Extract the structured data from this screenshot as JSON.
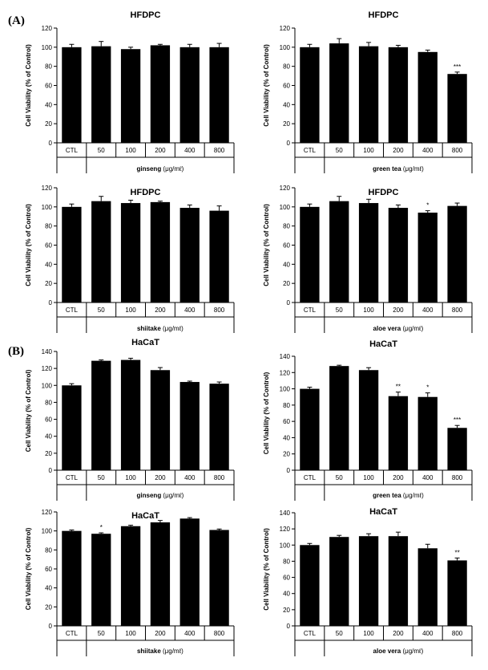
{
  "panels": [
    {
      "label": "(A)"
    },
    {
      "label": "(B)"
    }
  ],
  "chart_data": [
    {
      "type": "bar",
      "title": "HFDPC",
      "ylabel": "Cell Viability (% of Control)",
      "xlabel": "ginseng",
      "unit": "(μg/mℓ)",
      "ylim": [
        0,
        120
      ],
      "yticks": [
        0,
        20,
        40,
        60,
        80,
        100,
        120
      ],
      "categories": [
        "CTL",
        "50",
        "100",
        "200",
        "400",
        "800"
      ],
      "values": [
        100,
        101,
        98,
        102,
        100,
        100
      ],
      "errors": [
        3,
        5,
        2,
        1,
        3,
        4
      ],
      "significance": [
        "",
        "",
        "",
        "",
        "",
        ""
      ]
    },
    {
      "type": "bar",
      "title": "HFDPC",
      "ylabel": "Cell Viability (% of Control)",
      "xlabel": "green tea",
      "unit": "(μg/mℓ)",
      "ylim": [
        0,
        120
      ],
      "yticks": [
        0,
        20,
        40,
        60,
        80,
        100,
        120
      ],
      "categories": [
        "CTL",
        "50",
        "100",
        "200",
        "400",
        "800"
      ],
      "values": [
        100,
        104,
        101,
        100,
        95,
        72
      ],
      "errors": [
        3,
        5,
        4,
        2,
        2,
        2
      ],
      "significance": [
        "",
        "",
        "",
        "",
        "",
        "***"
      ]
    },
    {
      "type": "bar",
      "title": "HFDPC",
      "ylabel": "Cell Viability (% of Control)",
      "xlabel": "shiitake",
      "unit": "(μg/mℓ)",
      "ylim": [
        0,
        120
      ],
      "yticks": [
        0,
        20,
        40,
        60,
        80,
        100,
        120
      ],
      "categories": [
        "CTL",
        "50",
        "100",
        "200",
        "400",
        "800"
      ],
      "values": [
        100,
        106,
        104,
        105,
        99,
        96
      ],
      "errors": [
        3,
        5,
        3,
        1,
        3,
        5
      ],
      "significance": [
        "",
        "",
        "",
        "",
        "",
        ""
      ]
    },
    {
      "type": "bar",
      "title": "HFDPC",
      "ylabel": "Cell Viability (% of Control)",
      "xlabel": "aloe vera",
      "unit": "(μg/mℓ)",
      "ylim": [
        0,
        120
      ],
      "yticks": [
        0,
        20,
        40,
        60,
        80,
        100,
        120
      ],
      "categories": [
        "CTL",
        "50",
        "100",
        "200",
        "400",
        "800"
      ],
      "values": [
        100,
        106,
        104,
        99,
        94,
        101
      ],
      "errors": [
        3,
        5,
        4,
        3,
        2,
        3
      ],
      "significance": [
        "",
        "",
        "",
        "",
        "*",
        ""
      ]
    },
    {
      "type": "bar",
      "title": "HaCaT",
      "ylabel": "Cell Viability (% of Control)",
      "xlabel": "ginseng",
      "unit": "(μg/mℓ)",
      "ylim": [
        0,
        140
      ],
      "yticks": [
        0,
        20,
        40,
        60,
        80,
        100,
        120,
        140
      ],
      "categories": [
        "CTL",
        "50",
        "100",
        "200",
        "400",
        "800"
      ],
      "values": [
        100,
        129,
        130,
        118,
        104,
        102
      ],
      "errors": [
        2,
        1,
        2,
        3,
        1,
        2
      ],
      "significance": [
        "",
        "",
        "",
        "",
        "",
        ""
      ]
    },
    {
      "type": "bar",
      "title": "HaCaT",
      "ylabel": "Cell Viability (% of Control)",
      "xlabel": "green tea",
      "unit": "(μg/mℓ)",
      "ylim": [
        0,
        140
      ],
      "yticks": [
        0,
        20,
        40,
        60,
        80,
        100,
        120,
        140
      ],
      "categories": [
        "CTL",
        "50",
        "100",
        "200",
        "400",
        "800"
      ],
      "values": [
        100,
        128,
        123,
        91,
        90,
        52
      ],
      "errors": [
        2,
        1,
        3,
        5,
        5,
        3
      ],
      "significance": [
        "",
        "",
        "",
        "**",
        "*",
        "***"
      ]
    },
    {
      "type": "bar",
      "title": "HaCaT",
      "ylabel": "Cell Viability (% of Control)",
      "xlabel": "shiitake",
      "unit": "(μg/mℓ)",
      "ylim": [
        0,
        120
      ],
      "yticks": [
        0,
        20,
        40,
        60,
        80,
        100,
        120
      ],
      "categories": [
        "CTL",
        "50",
        "100",
        "200",
        "400",
        "800"
      ],
      "values": [
        100,
        97,
        105,
        109,
        113,
        101
      ],
      "errors": [
        1,
        1,
        1,
        2,
        1,
        1
      ],
      "significance": [
        "",
        "*",
        "",
        "",
        "",
        ""
      ]
    },
    {
      "type": "bar",
      "title": "HaCaT",
      "ylabel": "Cell Viability (% of Control)",
      "xlabel": "aloe vera",
      "unit": "(μg/mℓ)",
      "ylim": [
        0,
        140
      ],
      "yticks": [
        0,
        20,
        40,
        60,
        80,
        100,
        120,
        140
      ],
      "categories": [
        "CTL",
        "50",
        "100",
        "200",
        "400",
        "800"
      ],
      "values": [
        100,
        110,
        111,
        111,
        96,
        81
      ],
      "errors": [
        2,
        2,
        3,
        5,
        5,
        3
      ],
      "significance": [
        "",
        "",
        "",
        "",
        "",
        "**"
      ]
    }
  ]
}
